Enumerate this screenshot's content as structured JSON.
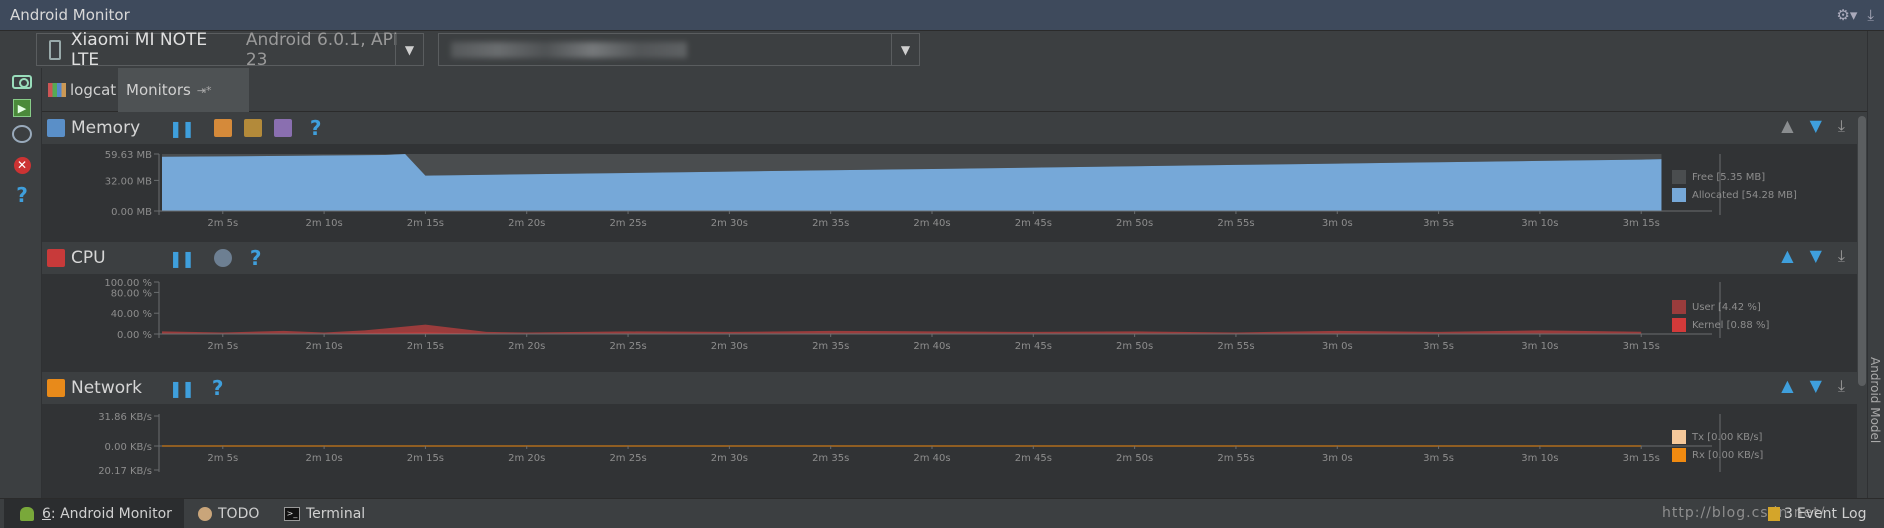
{
  "window": {
    "title": "Android Monitor"
  },
  "device": {
    "name": "Xiaomi MI NOTE LTE",
    "version": "Android 6.0.1, API 23"
  },
  "process": {
    "value": ""
  },
  "tabs": [
    {
      "label": "logcat"
    },
    {
      "label": "Monitors",
      "pin": "⇥*"
    }
  ],
  "monitors": {
    "memory": {
      "title": "Memory",
      "yticks": [
        "59.63 MB",
        "32.00 MB",
        "0.00 MB"
      ],
      "legend": [
        {
          "label": "Free [5.35 MB]",
          "color": "#4a4d4f"
        },
        {
          "label": "Allocated [54.28 MB]",
          "color": "#76a8d8"
        }
      ]
    },
    "cpu": {
      "title": "CPU",
      "yticks": [
        "100.00 %",
        "80.00 %",
        "40.00 %",
        "0.00 %"
      ],
      "legend": [
        {
          "label": "User [4.42 %]",
          "color": "#9a3c3c"
        },
        {
          "label": "Kernel [0.88 %]",
          "color": "#d23a3a"
        }
      ]
    },
    "network": {
      "title": "Network",
      "yticks": [
        "31.86 KB/s",
        "0.00 KB/s",
        "20.17 KB/s"
      ],
      "legend": [
        {
          "label": "Tx [0.00 KB/s]",
          "color": "#f5c89a"
        },
        {
          "label": "Rx [0.00 KB/s]",
          "color": "#f08a10"
        }
      ]
    }
  },
  "xticks": [
    "2m 5s",
    "2m 10s",
    "2m 15s",
    "2m 20s",
    "2m 25s",
    "2m 30s",
    "2m 35s",
    "2m 40s",
    "2m 45s",
    "2m 50s",
    "2m 55s",
    "3m 0s",
    "3m 5s",
    "3m 10s",
    "3m 15s"
  ],
  "chart_data": [
    {
      "type": "area",
      "x": [
        "2m 2s",
        "2m 5s",
        "2m 10s",
        "2m 13s",
        "2m 14s",
        "2m 15s",
        "2m 20s",
        "2m 25s",
        "2m 30s",
        "2m 35s",
        "2m 40s",
        "2m 45s",
        "2m 50s",
        "2m 55s",
        "3m 0s",
        "3m 5s",
        "3m 10s",
        "3m 15s",
        "3m 16s"
      ],
      "series": [
        {
          "name": "Allocated",
          "values": [
            56.8,
            57.2,
            58.0,
            58.6,
            59.6,
            37.0,
            38.4,
            39.8,
            41.2,
            42.6,
            44.0,
            45.4,
            46.8,
            48.2,
            49.6,
            51.0,
            52.4,
            53.8,
            54.3
          ]
        },
        {
          "name": "Free",
          "values": [
            2.8,
            2.4,
            1.6,
            1.0,
            0.0,
            22.6,
            21.2,
            19.8,
            18.4,
            17.0,
            15.6,
            14.2,
            12.8,
            11.4,
            10.0,
            8.6,
            7.2,
            5.8,
            5.3
          ]
        }
      ],
      "ylim": [
        0,
        59.63
      ]
    },
    {
      "type": "area",
      "x": [
        "2m 2s",
        "2m 5s",
        "2m 8s",
        "2m 10s",
        "2m 12s",
        "2m 15s",
        "2m 18s",
        "2m 20s",
        "2m 25s",
        "2m 30s",
        "2m 35s",
        "2m 40s",
        "2m 45s",
        "2m 50s",
        "2m 55s",
        "3m 0s",
        "3m 5s",
        "3m 10s",
        "3m 15s"
      ],
      "series": [
        {
          "name": "User",
          "values": [
            5,
            3,
            6,
            3,
            7,
            18,
            4,
            3,
            5,
            4,
            6,
            5,
            4,
            5,
            3,
            6,
            4,
            7,
            4.4
          ]
        },
        {
          "name": "Kernel",
          "values": [
            1,
            1,
            1,
            1,
            2,
            3,
            1,
            1,
            1,
            1,
            1,
            1,
            1,
            1,
            1,
            1,
            1,
            1,
            0.9
          ]
        }
      ],
      "ylim": [
        0,
        100
      ]
    },
    {
      "type": "line",
      "x": [
        "2m 2s",
        "2m 15s",
        "2m 30s",
        "2m 45s",
        "3m 0s",
        "3m 15s"
      ],
      "series": [
        {
          "name": "Tx",
          "values": [
            0,
            0,
            0,
            0,
            0,
            0
          ]
        },
        {
          "name": "Rx",
          "values": [
            0,
            0,
            0,
            0,
            0,
            0
          ]
        }
      ],
      "ylim": [
        -20.17,
        31.86
      ]
    }
  ],
  "statusbar": {
    "android_monitor_num": "6",
    "android_monitor": ": Android Monitor",
    "todo": "TODO",
    "terminal": "Terminal",
    "event_log_count": "3",
    "event_log": "Event Log",
    "watermark": "http://blog.csdn.net/"
  },
  "rightbar": {
    "label": "Android Model"
  }
}
